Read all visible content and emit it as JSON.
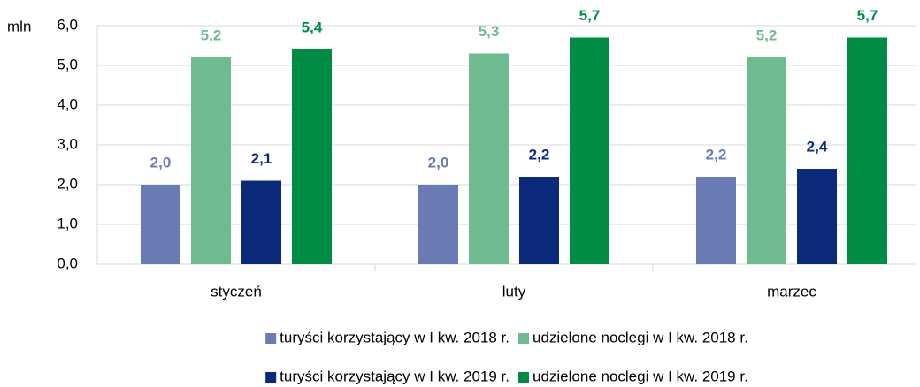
{
  "chart_data": {
    "type": "bar",
    "y_label": "mln",
    "categories": [
      "styczeń",
      "luty",
      "marzec"
    ],
    "series": [
      {
        "name": "turyści korzystający w I kw. 2018 r.",
        "color": "#6b7bb3",
        "values": [
          2.0,
          2.0,
          2.2
        ],
        "value_labels": [
          "2,0",
          "2,0",
          "2,2"
        ]
      },
      {
        "name": "udzielone noclegi w I kw. 2018 r.",
        "color": "#6dbb8f",
        "values": [
          5.2,
          5.3,
          5.2
        ],
        "value_labels": [
          "5,2",
          "5,3",
          "5,2"
        ]
      },
      {
        "name": "turyści korzystający w I kw. 2019 r.",
        "color": "#0b2a7a",
        "values": [
          2.1,
          2.2,
          2.4
        ],
        "value_labels": [
          "2,1",
          "2,2",
          "2,4"
        ]
      },
      {
        "name": "udzielone noclegi w I kw. 2019 r.",
        "color": "#008c45",
        "values": [
          5.4,
          5.7,
          5.7
        ],
        "value_labels": [
          "5,4",
          "5,7",
          "5,7"
        ]
      }
    ],
    "ylim": [
      0,
      6
    ],
    "yticks": [
      {
        "value": 0,
        "label": "0,0"
      },
      {
        "value": 1,
        "label": "1,0"
      },
      {
        "value": 2,
        "label": "2,0"
      },
      {
        "value": 3,
        "label": "3,0"
      },
      {
        "value": 4,
        "label": "4,0"
      },
      {
        "value": 5,
        "label": "5,0"
      },
      {
        "value": 6,
        "label": "6,0"
      }
    ],
    "grid": true
  }
}
